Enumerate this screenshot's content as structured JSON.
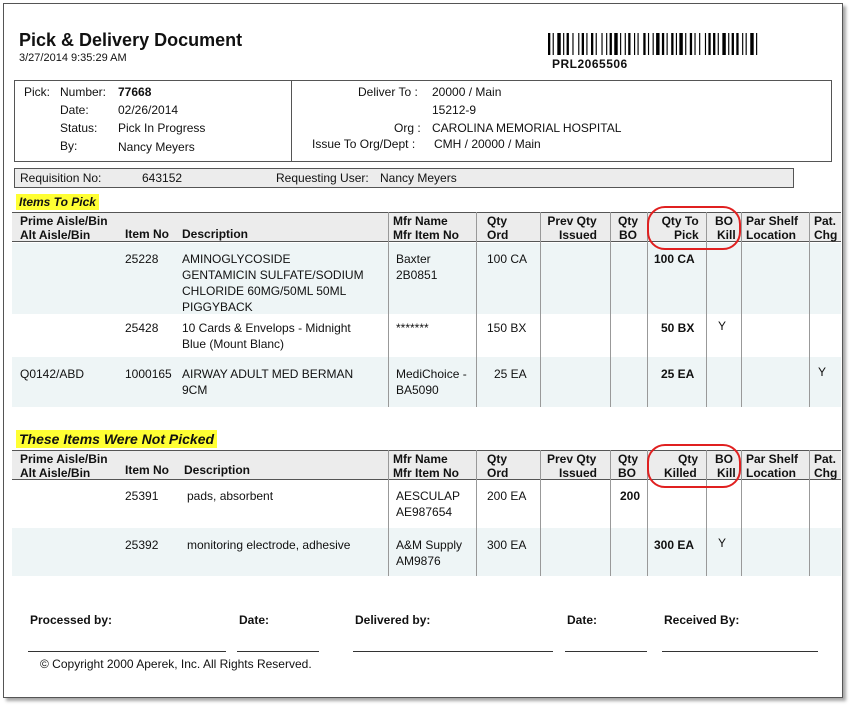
{
  "header": {
    "title": "Pick & Delivery Document",
    "datetime": "3/27/2014 9:35:29 AM",
    "barcode_text": "PRL2065506"
  },
  "pick": {
    "section_label": "Pick:",
    "number_label": "Number:",
    "number": "77668",
    "date_label": "Date:",
    "date": "02/26/2014",
    "status_label": "Status:",
    "status": "Pick In Progress",
    "by_label": "By:",
    "by": "Nancy Meyers"
  },
  "delivery": {
    "deliver_to_label": "Deliver To :",
    "deliver_to": "20000 / Main",
    "deliver_to_line2": "15212-9",
    "org_label": "Org :",
    "org": "CAROLINA MEMORIAL HOSPITAL",
    "issue_to_label": "Issue To Org/Dept :",
    "issue_to": "CMH  / 20000 / Main"
  },
  "requisition": {
    "req_label": "Requisition No:",
    "req_no": "643152",
    "user_label": "Requesting User:",
    "user": "Nancy Meyers"
  },
  "items_to_pick": {
    "title": "Items To Pick",
    "headers": {
      "aisle1": "Prime Aisle/Bin",
      "aisle2": "Alt Aisle/Bin",
      "item_no": "Item No",
      "desc": "Description",
      "mfr1": "Mfr Name",
      "mfr2": "Mfr Item No",
      "qty1": "Qty",
      "qty2": "Ord",
      "prev1": "Prev Qty",
      "prev2": "Issued",
      "bo1": "Qty",
      "bo2": "BO",
      "pick1": "Qty To",
      "pick2": "Pick",
      "kill1": "BO",
      "kill2": "Kill",
      "par1": "Par Shelf",
      "par2": "Location",
      "pat1": "Pat.",
      "pat2": "Chg"
    },
    "rows": [
      {
        "aisle": "",
        "item_no": "25228",
        "desc": [
          "AMINOGLYCOSIDE",
          "GENTAMICIN SULFATE/SODIUM",
          "CHLORIDE 60MG/50ML 50ML",
          "PIGGYBACK"
        ],
        "mfr": [
          "Baxter",
          "2B0851"
        ],
        "qty_ord": "100 CA",
        "prev": "",
        "qty_bo": "",
        "qty_pick": "100 CA",
        "bo_kill": "",
        "par": "",
        "pat": ""
      },
      {
        "aisle": "",
        "item_no": "25428",
        "desc": [
          "10 Cards & Envelops - Midnight",
          "Blue (Mount Blanc)"
        ],
        "mfr": [
          "*******",
          ""
        ],
        "qty_ord": "150 BX",
        "prev": "",
        "qty_bo": "",
        "qty_pick": "50 BX",
        "bo_kill": "Y",
        "par": "",
        "pat": ""
      },
      {
        "aisle": "Q0142/ABD",
        "item_no": "1000165",
        "desc": [
          "AIRWAY ADULT MED BERMAN",
          "9CM"
        ],
        "mfr": [
          "MediChoice -",
          "BA5090"
        ],
        "qty_ord": "25 EA",
        "prev": "",
        "qty_bo": "",
        "qty_pick": "25 EA",
        "bo_kill": "",
        "par": "",
        "pat": "Y"
      }
    ]
  },
  "not_picked": {
    "title": "These Items Were Not Picked",
    "headers": {
      "aisle1": "Prime Aisle/Bin",
      "aisle2": "Alt Aisle/Bin",
      "item_no": "Item No",
      "desc": "Description",
      "mfr1": "Mfr Name",
      "mfr2": "Mfr Item No",
      "qty1": "Qty",
      "qty2": "Ord",
      "prev1": "Prev Qty",
      "prev2": "Issued",
      "bo1": "Qty",
      "bo2": "BO",
      "killed1": "Qty",
      "killed2": "Killed",
      "kill1": "BO",
      "kill2": "Kill",
      "par1": "Par Shelf",
      "par2": "Location",
      "pat1": "Pat.",
      "pat2": "Chg"
    },
    "rows": [
      {
        "item_no": "25391",
        "desc": "pads, absorbent",
        "mfr": [
          "AESCULAP",
          "AE987654"
        ],
        "qty_ord": "200 EA",
        "qty_bo": "200",
        "qty_killed": "",
        "bo_kill": ""
      },
      {
        "item_no": "25392",
        "desc": "monitoring electrode, adhesive",
        "mfr": [
          "A&M Supply",
          "AM9876"
        ],
        "qty_ord": "300 EA",
        "qty_bo": "",
        "qty_killed": "300 EA",
        "bo_kill": "Y"
      }
    ]
  },
  "signatures": {
    "processed": "Processed by:",
    "date1": "Date:",
    "delivered": "Delivered by:",
    "date2": "Date:",
    "received": "Received By:"
  },
  "footer": {
    "copyright": "© Copyright 2000 Aperek, Inc.  All Rights Reserved."
  },
  "colors": {
    "highlight": "#ffff33",
    "annotation_oval": "#e02020",
    "row_shade": "#eef5f6"
  }
}
